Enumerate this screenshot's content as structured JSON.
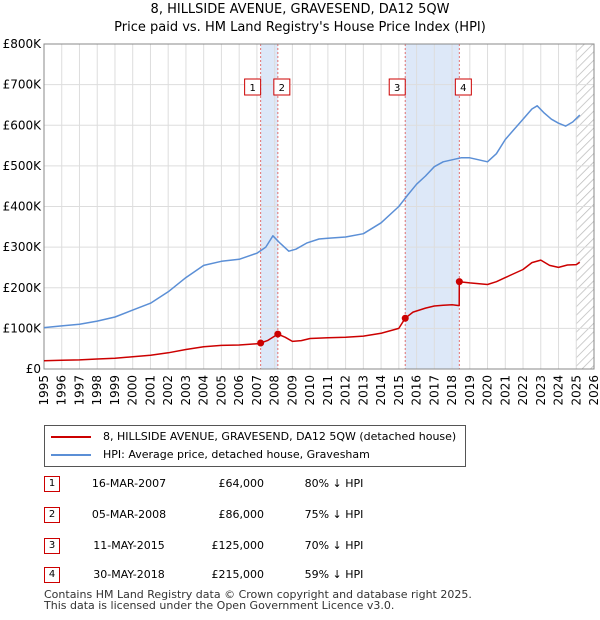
{
  "header": {
    "title": "8, HILLSIDE AVENUE, GRAVESEND, DA12 5QW",
    "subtitle": "Price paid vs. HM Land Registry's House Price Index (HPI)"
  },
  "colors": {
    "property_line": "#cc0000",
    "hpi_line": "#5b8fd6",
    "shade": "#dde8f8",
    "marker_border": "#cc0000",
    "vline": "#e07070",
    "hatch": "#bbbbbb"
  },
  "chart_data": {
    "type": "line",
    "title": "Price paid vs. HM Land Registry's House Price Index (HPI)",
    "xlabel": "",
    "ylabel": "",
    "xlim": [
      1995,
      2026
    ],
    "ylim": [
      0,
      800000
    ],
    "x_ticks": [
      "1995",
      "1996",
      "1997",
      "1998",
      "1999",
      "2000",
      "2001",
      "2002",
      "2003",
      "2004",
      "2005",
      "2006",
      "2007",
      "2008",
      "2009",
      "2010",
      "2011",
      "2012",
      "2013",
      "2014",
      "2015",
      "2016",
      "2017",
      "2018",
      "2019",
      "2020",
      "2021",
      "2022",
      "2023",
      "2024",
      "2025",
      "2026"
    ],
    "y_ticks": [
      {
        "value": 0,
        "label": "£0"
      },
      {
        "value": 100000,
        "label": "£100K"
      },
      {
        "value": 200000,
        "label": "£200K"
      },
      {
        "value": 300000,
        "label": "£300K"
      },
      {
        "value": 400000,
        "label": "£400K"
      },
      {
        "value": 500000,
        "label": "£500K"
      },
      {
        "value": 600000,
        "label": "£600K"
      },
      {
        "value": 700000,
        "label": "£700K"
      },
      {
        "value": 800000,
        "label": "£800K"
      }
    ],
    "shaded_ranges": [
      [
        2007.21,
        2008.18
      ],
      [
        2015.36,
        2018.41
      ]
    ],
    "hatch_from": 2025.0,
    "series": [
      {
        "name": "8, HILLSIDE AVENUE, GRAVESEND, DA12 5QW (detached house)",
        "points": [
          [
            1995.0,
            20500
          ],
          [
            1996.0,
            21500
          ],
          [
            1997.0,
            22500
          ],
          [
            1998.0,
            24500
          ],
          [
            1999.0,
            26500
          ],
          [
            2000.0,
            30000
          ],
          [
            2001.0,
            34000
          ],
          [
            2002.0,
            40000
          ],
          [
            2003.0,
            48000
          ],
          [
            2004.0,
            55000
          ],
          [
            2005.0,
            58000
          ],
          [
            2006.0,
            59000
          ],
          [
            2007.0,
            62000
          ],
          [
            2007.21,
            64000
          ],
          [
            2007.6,
            70000
          ],
          [
            2008.18,
            86000
          ],
          [
            2008.6,
            78000
          ],
          [
            2009.0,
            68000
          ],
          [
            2009.5,
            70000
          ],
          [
            2010.0,
            75000
          ],
          [
            2011.0,
            77000
          ],
          [
            2012.0,
            78000
          ],
          [
            2013.0,
            81000
          ],
          [
            2014.0,
            88000
          ],
          [
            2015.0,
            100000
          ],
          [
            2015.36,
            125000
          ],
          [
            2015.8,
            140000
          ],
          [
            2016.5,
            150000
          ],
          [
            2017.0,
            155000
          ],
          [
            2017.5,
            157000
          ],
          [
            2018.0,
            158000
          ],
          [
            2018.4,
            156000
          ],
          [
            2018.41,
            215000
          ],
          [
            2019.0,
            212000
          ],
          [
            2020.0,
            208000
          ],
          [
            2020.5,
            215000
          ],
          [
            2021.0,
            225000
          ],
          [
            2021.5,
            235000
          ],
          [
            2022.0,
            245000
          ],
          [
            2022.5,
            262000
          ],
          [
            2023.0,
            268000
          ],
          [
            2023.5,
            255000
          ],
          [
            2024.0,
            250000
          ],
          [
            2024.5,
            256000
          ],
          [
            2025.0,
            257000
          ],
          [
            2025.2,
            263000
          ]
        ]
      },
      {
        "name": "HPI: Average price, detached house, Gravesham",
        "points": [
          [
            1995.0,
            102000
          ],
          [
            1995.5,
            104000
          ],
          [
            1996.0,
            106000
          ],
          [
            1997.0,
            110000
          ],
          [
            1998.0,
            118000
          ],
          [
            1999.0,
            128000
          ],
          [
            2000.0,
            145000
          ],
          [
            2001.0,
            162000
          ],
          [
            2002.0,
            190000
          ],
          [
            2003.0,
            225000
          ],
          [
            2004.0,
            255000
          ],
          [
            2005.0,
            265000
          ],
          [
            2006.0,
            270000
          ],
          [
            2007.0,
            285000
          ],
          [
            2007.5,
            300000
          ],
          [
            2007.9,
            328000
          ],
          [
            2008.3,
            310000
          ],
          [
            2008.8,
            290000
          ],
          [
            2009.2,
            295000
          ],
          [
            2009.8,
            310000
          ],
          [
            2010.5,
            320000
          ],
          [
            2011.0,
            322000
          ],
          [
            2012.0,
            325000
          ],
          [
            2013.0,
            333000
          ],
          [
            2014.0,
            360000
          ],
          [
            2015.0,
            400000
          ],
          [
            2015.5,
            428000
          ],
          [
            2016.0,
            455000
          ],
          [
            2016.5,
            475000
          ],
          [
            2017.0,
            498000
          ],
          [
            2017.5,
            510000
          ],
          [
            2018.0,
            515000
          ],
          [
            2018.5,
            520000
          ],
          [
            2019.0,
            520000
          ],
          [
            2019.5,
            515000
          ],
          [
            2020.0,
            510000
          ],
          [
            2020.5,
            530000
          ],
          [
            2021.0,
            565000
          ],
          [
            2021.5,
            590000
          ],
          [
            2022.0,
            615000
          ],
          [
            2022.5,
            640000
          ],
          [
            2022.8,
            648000
          ],
          [
            2023.2,
            630000
          ],
          [
            2023.6,
            615000
          ],
          [
            2024.0,
            605000
          ],
          [
            2024.4,
            598000
          ],
          [
            2024.8,
            608000
          ],
          [
            2025.2,
            625000
          ]
        ]
      }
    ],
    "markers": [
      {
        "label": "1",
        "x": 2007.21,
        "y": 64000
      },
      {
        "label": "2",
        "x": 2008.18,
        "y": 86000
      },
      {
        "label": "3",
        "x": 2015.36,
        "y": 125000
      },
      {
        "label": "4",
        "x": 2018.41,
        "y": 215000
      }
    ]
  },
  "legend": {
    "items": [
      {
        "label": "8, HILLSIDE AVENUE, GRAVESEND, DA12 5QW (detached house)"
      },
      {
        "label": "HPI: Average price, detached house, Gravesham"
      }
    ]
  },
  "transactions": [
    {
      "num": "1",
      "date": "16-MAR-2007",
      "price": "£64,000",
      "hpi": "80% ↓ HPI"
    },
    {
      "num": "2",
      "date": "05-MAR-2008",
      "price": "£86,000",
      "hpi": "75% ↓ HPI"
    },
    {
      "num": "3",
      "date": "11-MAY-2015",
      "price": "£125,000",
      "hpi": "70% ↓ HPI"
    },
    {
      "num": "4",
      "date": "30-MAY-2018",
      "price": "£215,000",
      "hpi": "59% ↓ HPI"
    }
  ],
  "footer": {
    "line1": "Contains HM Land Registry data © Crown copyright and database right 2025.",
    "line2": "This data is licensed under the Open Government Licence v3.0."
  }
}
